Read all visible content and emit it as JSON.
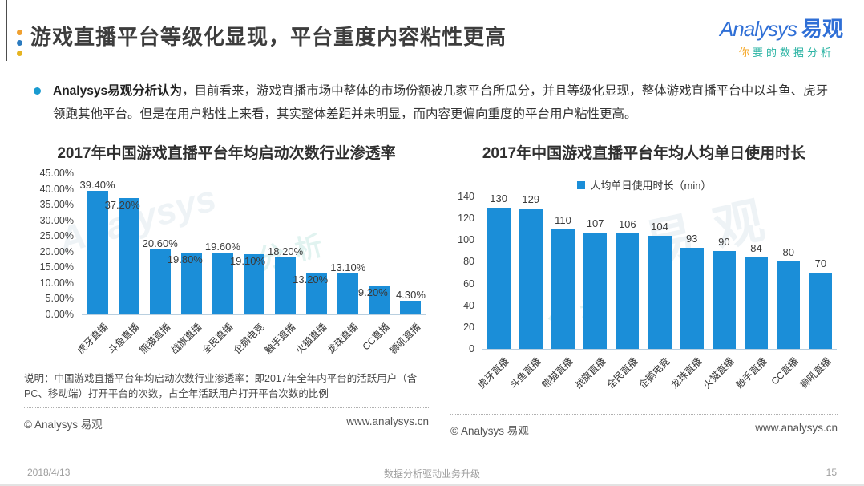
{
  "header": {
    "title": "游戏直播平台等级化显现，平台重度内容粘性更高",
    "logo": {
      "brand": "Analysys",
      "brand_cn": "易观",
      "tagline_first": "你",
      "tagline_rest": "要的数据分析"
    }
  },
  "summary": {
    "lead": "Analysys易观分析认为",
    "rest": "，目前看来，游戏直播市场中整体的市场份额被几家平台所瓜分，并且等级化显现，整体游戏直播平台中以斗鱼、虎牙领跑其他平台。但是在用户粘性上来看，其实整体差距并未明显，而内容更偏向重度的平台用户粘性更高。"
  },
  "colors": {
    "bar": "#1b8ed8",
    "dot_orange": "#f0a030",
    "dot_blue": "#2b7bbf",
    "dot_yellow": "#e6b422"
  },
  "chart_data": [
    {
      "type": "bar",
      "title": "2017年中国游戏直播平台年均启动次数行业渗透率",
      "categories": [
        "虎牙直播",
        "斗鱼直播",
        "熊猫直播",
        "战旗直播",
        "全民直播",
        "企鹅电竞",
        "触手直播",
        "火猫直播",
        "龙珠直播",
        "CC直播",
        "狮吼直播"
      ],
      "values": [
        39.4,
        37.2,
        20.6,
        19.8,
        19.6,
        19.1,
        18.2,
        13.2,
        13.1,
        9.2,
        4.3
      ],
      "data_labels": [
        "39.40%",
        "37.20%",
        "20.60%",
        "19.80%",
        "19.60%",
        "19.10%",
        "18.20%",
        "13.20%",
        "13.10%",
        "9.20%",
        "4.30%"
      ],
      "y_ticks": [
        "45.00%",
        "40.00%",
        "35.00%",
        "30.00%",
        "25.00%",
        "20.00%",
        "15.00%",
        "10.00%",
        "5.00%",
        "0.00%"
      ],
      "ylim": [
        0,
        45
      ],
      "unit": "%",
      "grid": false,
      "legend_position": "none",
      "note": "说明：中国游戏直播平台年均启动次数行业渗透率：即2017年全年内平台的活跃用户（含PC、移动端）打开平台的次数，占全年活跃用户打开平台次数的比例"
    },
    {
      "type": "bar",
      "title": "2017年中国游戏直播平台年均人均单日使用时长",
      "legend_label": "人均单日使用时长（min）",
      "categories": [
        "虎牙直播",
        "斗鱼直播",
        "熊猫直播",
        "战旗直播",
        "全民直播",
        "企鹅电竞",
        "龙珠直播",
        "火猫直播",
        "触手直播",
        "CC直播",
        "狮吼直播"
      ],
      "values": [
        130,
        129,
        110,
        107,
        106,
        104,
        93,
        90,
        84,
        80,
        70
      ],
      "data_labels": [
        "130",
        "129",
        "110",
        "107",
        "106",
        "104",
        "93",
        "90",
        "84",
        "80",
        "70"
      ],
      "y_ticks": [
        "140",
        "120",
        "100",
        "80",
        "60",
        "40",
        "20",
        "0"
      ],
      "ylim": [
        0,
        140
      ],
      "unit": "min",
      "grid": false,
      "legend_position": "top"
    }
  ],
  "chart_footer": {
    "copyright": "© Analysys 易观",
    "site": "www.analysys.cn"
  },
  "watermarks": {
    "script": "Analysys",
    "cn": "易观",
    "cn2": "分析"
  },
  "page_footer": {
    "date": "2018/4/13",
    "slogan": "数据分析驱动业务升级",
    "page": "15"
  }
}
